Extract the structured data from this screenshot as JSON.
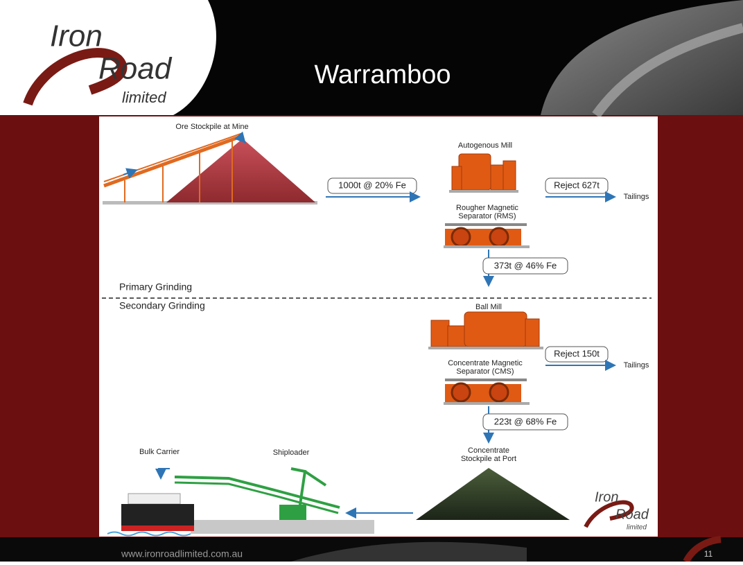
{
  "header": {
    "logo": {
      "line1": "Iron",
      "line2": "Road",
      "line3": "limited"
    },
    "title": "Warramboo"
  },
  "diagram": {
    "nodes": [
      {
        "label": "Ore Stockpile at Mine"
      },
      {
        "label": "Autogenous Mill"
      },
      {
        "label": [
          "Rougher Magnetic",
          "Separator (RMS)"
        ]
      },
      {
        "label": "Ball Mill"
      },
      {
        "label": [
          "Concentrate Magnetic",
          "Separator (CMS)"
        ]
      },
      {
        "label": [
          "Concentrate",
          "Stockpile at Port"
        ]
      },
      {
        "label": "Shiploader"
      },
      {
        "label": "Bulk Carrier"
      }
    ],
    "flows": [
      {
        "label": "1000t @ 20% Fe"
      },
      {
        "label": "Reject 627t",
        "destination": "Tailings"
      },
      {
        "label": "373t @ 46% Fe"
      },
      {
        "label": "Reject 150t",
        "destination": "Tailings"
      },
      {
        "label": "223t @ 68% Fe"
      }
    ],
    "stages": [
      "Primary Grinding",
      "Secondary Grinding"
    ],
    "small_logo": {
      "line1": "Iron",
      "line2": "Road",
      "line3": "limited"
    }
  },
  "footer": {
    "website": "www.ironroadlimited.com.au",
    "page_number": 11
  }
}
